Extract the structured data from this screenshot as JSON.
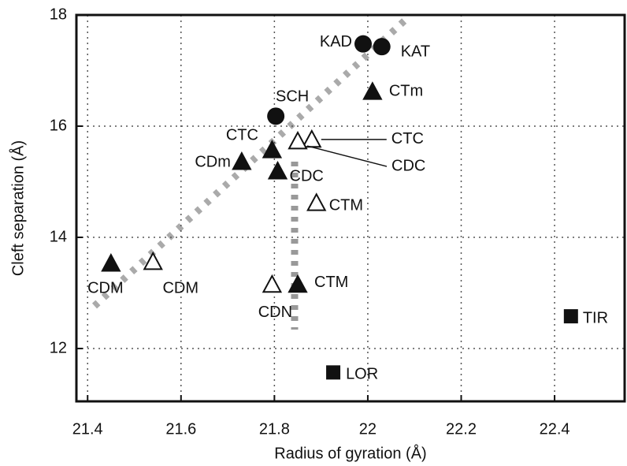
{
  "chart_data": {
    "type": "scatter",
    "x_label": "Radius of gyration (Å)",
    "y_label": "Cleft separation (Å)",
    "xlim": [
      21.376,
      22.55
    ],
    "ylim": [
      11.05,
      18
    ],
    "xticks": [
      21.4,
      21.6,
      21.8,
      22,
      22.2,
      22.4
    ],
    "yticks": [
      12,
      14,
      16,
      18
    ],
    "grid": true,
    "points": [
      {
        "label": "KAD",
        "marker": "circle",
        "x": 21.99,
        "y": 17.48
      },
      {
        "label": "KAT",
        "marker": "circle",
        "x": 22.03,
        "y": 17.43
      },
      {
        "label": "CTm",
        "marker": "triangle",
        "x": 22.01,
        "y": 16.62
      },
      {
        "label": "SCH",
        "marker": "circle",
        "x": 21.803,
        "y": 16.18
      },
      {
        "label": "CTC",
        "marker": "triangle",
        "x": 21.795,
        "y": 15.57
      },
      {
        "label": "CTC",
        "marker": "triangle-open",
        "x": 21.88,
        "y": 15.76
      },
      {
        "label": "CDC",
        "marker": "triangle-open",
        "x": 21.85,
        "y": 15.73
      },
      {
        "label": "CDm",
        "marker": "triangle",
        "x": 21.73,
        "y": 15.36
      },
      {
        "label": "CDC",
        "marker": "triangle",
        "x": 21.807,
        "y": 15.19
      },
      {
        "label": "CTM",
        "marker": "triangle-open",
        "x": 21.89,
        "y": 14.62
      },
      {
        "label": "CDM",
        "marker": "triangle",
        "x": 21.45,
        "y": 13.53
      },
      {
        "label": "CDM",
        "marker": "triangle-open",
        "x": 21.54,
        "y": 13.56
      },
      {
        "label": "CDN",
        "marker": "triangle-open",
        "x": 21.795,
        "y": 13.15
      },
      {
        "label": "CTM",
        "marker": "triangle",
        "x": 21.85,
        "y": 13.15
      },
      {
        "label": "TIR",
        "marker": "square",
        "x": 22.435,
        "y": 12.58
      },
      {
        "label": "LOR",
        "marker": "square",
        "x": 21.926,
        "y": 11.57
      }
    ]
  }
}
